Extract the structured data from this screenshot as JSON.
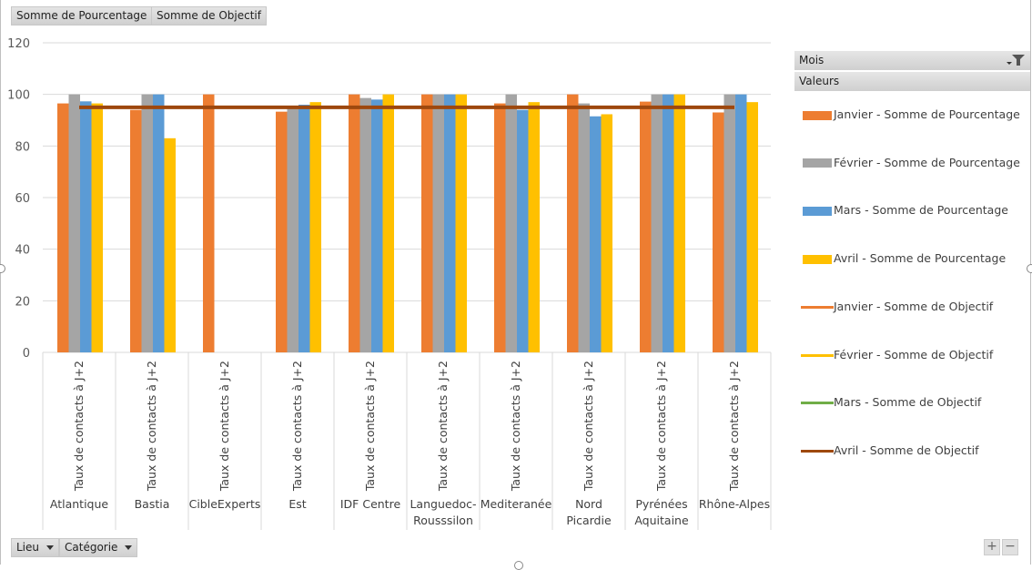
{
  "top_fields": [
    "Somme de Pourcentage",
    "Somme de Objectif"
  ],
  "bottom_fields": [
    {
      "label": "Lieu"
    },
    {
      "label": "Catégorie"
    }
  ],
  "legend": {
    "header_mois": "Mois",
    "header_valeurs": "Valeurs",
    "items": [
      {
        "label": "Janvier  - Somme de Pourcentage",
        "kind": "bar",
        "color": "#ED7D31"
      },
      {
        "label": "Février  - Somme de Pourcentage",
        "kind": "bar",
        "color": "#A5A5A5"
      },
      {
        "label": "Mars  - Somme de Pourcentage",
        "kind": "bar",
        "color": "#5B9BD5"
      },
      {
        "label": "Avril  - Somme de Pourcentage",
        "kind": "bar",
        "color": "#FFC000"
      },
      {
        "label": "Janvier  - Somme de Objectif",
        "kind": "line",
        "color": "#ED7D31"
      },
      {
        "label": "Février  - Somme de Objectif",
        "kind": "line",
        "color": "#FFC000"
      },
      {
        "label": "Mars  - Somme de Objectif",
        "kind": "line",
        "color": "#70AD47"
      },
      {
        "label": "Avril  - Somme de Objectif",
        "kind": "line",
        "color": "#9E480E"
      }
    ]
  },
  "zoom_controls": {
    "plus": "+",
    "minus": "−"
  },
  "chart_data": {
    "type": "bar",
    "title": "",
    "xlabel": "",
    "ylabel": "",
    "ylim": [
      0,
      120
    ],
    "yticks": [
      0,
      20,
      40,
      60,
      80,
      100,
      120
    ],
    "grid": true,
    "legend_position": "right",
    "category_sublabel": "Taux de contacts à J+2",
    "categories": [
      "Atlantique",
      "Bastia",
      "CibleExperts",
      "Est",
      "IDF Centre",
      "Languedoc-\nRousssilon",
      "Mediteranée",
      "Nord\nPicardie",
      "Pyrénées\nAquitaine",
      "Rhône-Alpes"
    ],
    "series": [
      {
        "name": "Janvier  - Somme de Pourcentage",
        "color": "#ED7D31",
        "values": [
          96.5,
          94,
          100,
          93.3,
          100,
          100,
          96.5,
          100,
          97.2,
          93
        ]
      },
      {
        "name": "Février  - Somme de Pourcentage",
        "color": "#A5A5A5",
        "values": [
          100,
          100,
          null,
          95.5,
          98.6,
          100,
          100,
          96.5,
          100,
          100
        ]
      },
      {
        "name": "Mars  - Somme de Pourcentage",
        "color": "#5B9BD5",
        "values": [
          97.3,
          100,
          null,
          96,
          98,
          100,
          94,
          91.5,
          100,
          100
        ]
      },
      {
        "name": "Avril  - Somme de Pourcentage",
        "color": "#FFC000",
        "values": [
          96.5,
          83,
          null,
          97,
          100,
          100,
          97,
          92.3,
          100,
          97
        ]
      }
    ],
    "line_series": [
      {
        "name": "Avril  - Somme de Objectif",
        "color": "#9E480E",
        "values": [
          95,
          95,
          95,
          95,
          95,
          95,
          95,
          95,
          95,
          95
        ]
      }
    ]
  }
}
